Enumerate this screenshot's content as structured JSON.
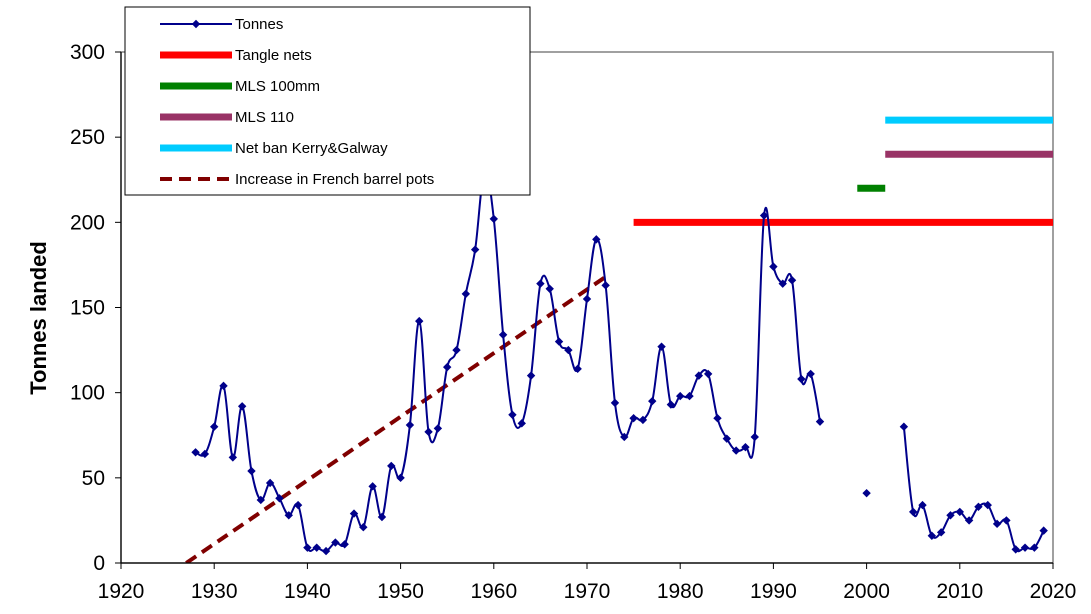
{
  "chart_data": {
    "type": "line",
    "ylabel": "Tonnes landed",
    "xlabel": "",
    "xlim": [
      1920,
      2020
    ],
    "ylim": [
      0,
      300
    ],
    "x_ticks": [
      "1920",
      "1930",
      "1940",
      "1950",
      "1960",
      "1970",
      "1980",
      "1990",
      "2000",
      "2010",
      "2020"
    ],
    "y_ticks": [
      "0",
      "50",
      "100",
      "150",
      "200",
      "250",
      "300"
    ],
    "legend_position": "top-left",
    "series": [
      {
        "name": "Tonnes",
        "color": "#00008B",
        "style": "line-markers",
        "segments": [
          [
            [
              1928,
              65
            ],
            [
              1929,
              64
            ],
            [
              1930,
              80
            ],
            [
              1931,
              104
            ],
            [
              1932,
              62
            ],
            [
              1933,
              92
            ],
            [
              1934,
              54
            ],
            [
              1935,
              37
            ],
            [
              1936,
              47
            ],
            [
              1937,
              38
            ],
            [
              1938,
              28
            ],
            [
              1939,
              34
            ],
            [
              1940,
              9
            ],
            [
              1941,
              9
            ],
            [
              1942,
              7
            ],
            [
              1943,
              12
            ],
            [
              1944,
              11
            ],
            [
              1945,
              29
            ],
            [
              1946,
              21
            ],
            [
              1947,
              45
            ],
            [
              1948,
              27
            ],
            [
              1949,
              57
            ],
            [
              1950,
              50
            ],
            [
              1951,
              81
            ],
            [
              1952,
              142
            ],
            [
              1953,
              77
            ],
            [
              1954,
              79
            ],
            [
              1955,
              115
            ],
            [
              1956,
              125
            ],
            [
              1957,
              158
            ],
            [
              1958,
              184
            ],
            [
              1959,
              230
            ],
            [
              1960,
              202
            ],
            [
              1961,
              134
            ],
            [
              1962,
              87
            ],
            [
              1963,
              82
            ],
            [
              1964,
              110
            ],
            [
              1965,
              164
            ],
            [
              1966,
              161
            ],
            [
              1967,
              130
            ],
            [
              1968,
              125
            ],
            [
              1969,
              114
            ],
            [
              1970,
              155
            ],
            [
              1971,
              190
            ],
            [
              1972,
              163
            ],
            [
              1973,
              94
            ],
            [
              1974,
              74
            ],
            [
              1975,
              85
            ],
            [
              1976,
              84
            ],
            [
              1977,
              95
            ],
            [
              1978,
              127
            ],
            [
              1979,
              93
            ],
            [
              1980,
              98
            ],
            [
              1981,
              98
            ],
            [
              1982,
              110
            ],
            [
              1983,
              111
            ],
            [
              1984,
              85
            ],
            [
              1985,
              73
            ],
            [
              1986,
              66
            ],
            [
              1987,
              68
            ],
            [
              1988,
              74
            ],
            [
              1989,
              204
            ],
            [
              1990,
              174
            ],
            [
              1991,
              164
            ],
            [
              1992,
              166
            ],
            [
              1993,
              108
            ],
            [
              1994,
              111
            ],
            [
              1995,
              83
            ]
          ],
          [
            [
              2000,
              41
            ]
          ],
          [
            [
              2004,
              80
            ],
            [
              2005,
              30
            ],
            [
              2006,
              34
            ],
            [
              2007,
              16
            ],
            [
              2008,
              18
            ],
            [
              2009,
              28
            ],
            [
              2010,
              30
            ],
            [
              2011,
              25
            ],
            [
              2012,
              33
            ],
            [
              2013,
              34
            ],
            [
              2014,
              23
            ],
            [
              2015,
              25
            ],
            [
              2016,
              8
            ],
            [
              2017,
              9
            ],
            [
              2018,
              9
            ],
            [
              2019,
              19
            ]
          ]
        ]
      },
      {
        "name": "Tangle nets",
        "color": "#FF0000",
        "style": "thick",
        "x": [
          1975,
          2020
        ],
        "y": [
          200,
          200
        ]
      },
      {
        "name": "MLS 100mm",
        "color": "#008000",
        "style": "thick",
        "x": [
          1999,
          2002
        ],
        "y": [
          220,
          220
        ]
      },
      {
        "name": "MLS 110",
        "color": "#993366",
        "style": "thick",
        "x": [
          2002,
          2020
        ],
        "y": [
          240,
          240
        ]
      },
      {
        "name": "Net ban Kerry&Galway",
        "color": "#00CCFF",
        "style": "thick",
        "x": [
          2002,
          2020
        ],
        "y": [
          260,
          260
        ]
      },
      {
        "name": "Increase in French barrel pots",
        "color": "#800000",
        "style": "dashed",
        "x": [
          1927,
          1972
        ],
        "y": [
          0,
          168
        ]
      }
    ]
  }
}
